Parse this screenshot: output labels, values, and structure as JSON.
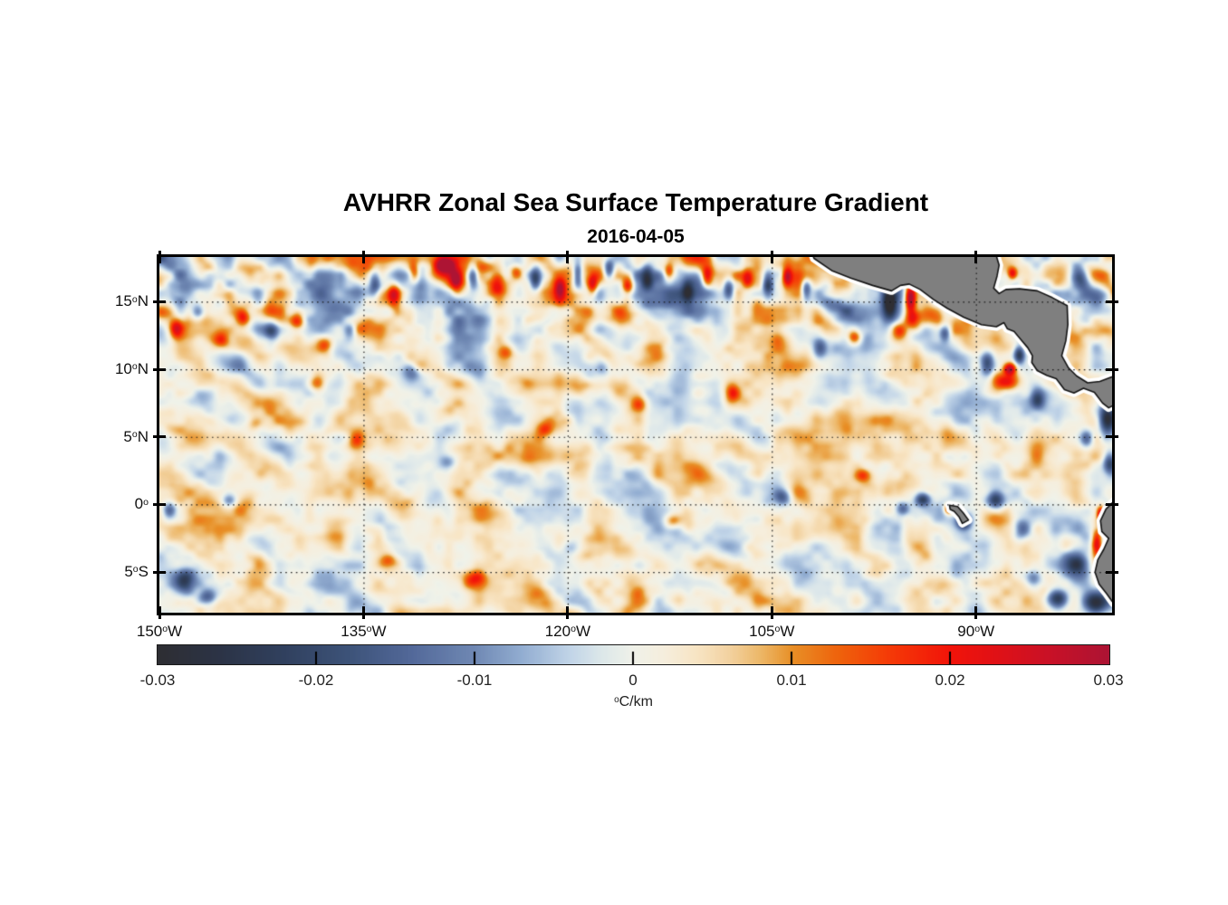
{
  "header": {
    "title": "AVHRR Zonal Sea Surface Temperature Gradient",
    "subtitle": "2016-04-05"
  },
  "chart_data": {
    "type": "heatmap",
    "title": "AVHRR Zonal Sea Surface Temperature Gradient",
    "subtitle": "2016-04-05",
    "units": "°C/km",
    "lon_range": [
      -150,
      -80
    ],
    "lat_range": [
      -8,
      18.3
    ],
    "grid": "dotted",
    "x_ticks": [
      {
        "lon": -150,
        "label": "150°W"
      },
      {
        "lon": -135,
        "label": "135°W"
      },
      {
        "lon": -120,
        "label": "120°W"
      },
      {
        "lon": -105,
        "label": "105°W"
      },
      {
        "lon": -90,
        "label": "90°W"
      }
    ],
    "y_ticks": [
      {
        "lat": 15,
        "label": "15°N"
      },
      {
        "lat": 10,
        "label": "10°N"
      },
      {
        "lat": 5,
        "label": "5°N"
      },
      {
        "lat": 0,
        "label": "0°"
      },
      {
        "lat": -5,
        "label": "5°S"
      }
    ],
    "colorbar": {
      "min": -0.03,
      "max": 0.03,
      "ticks": [
        {
          "v": -0.03,
          "label": "-0.03"
        },
        {
          "v": -0.02,
          "label": "-0.02"
        },
        {
          "v": -0.01,
          "label": "-0.01"
        },
        {
          "v": 0,
          "label": "0"
        },
        {
          "v": 0.01,
          "label": "0.01"
        },
        {
          "v": 0.02,
          "label": "0.02"
        },
        {
          "v": 0.03,
          "label": "0.03"
        }
      ],
      "label": "°C/km",
      "stops": [
        [
          -0.03,
          "#2e2e33"
        ],
        [
          -0.026,
          "#2c3447"
        ],
        [
          -0.022,
          "#31415f"
        ],
        [
          -0.018,
          "#3d5379"
        ],
        [
          -0.014,
          "#53699a"
        ],
        [
          -0.01,
          "#7089b4"
        ],
        [
          -0.007,
          "#93aed2"
        ],
        [
          -0.004,
          "#c2d5e8"
        ],
        [
          -0.002,
          "#dde8ea"
        ],
        [
          0.0,
          "#f0f2e9"
        ],
        [
          0.002,
          "#f6eedd"
        ],
        [
          0.004,
          "#f8e5c4"
        ],
        [
          0.006,
          "#f3d3a2"
        ],
        [
          0.008,
          "#edb869"
        ],
        [
          0.01,
          "#e89027"
        ],
        [
          0.013,
          "#ef620c"
        ],
        [
          0.016,
          "#f53c07"
        ],
        [
          0.02,
          "#f2140a"
        ],
        [
          0.023,
          "#e01117"
        ],
        [
          0.026,
          "#cb1126"
        ],
        [
          0.03,
          "#ad1434"
        ]
      ]
    },
    "land_color": "#7f7f7f",
    "coast_color": "#141414",
    "halo_color": "#ffffff",
    "land_polygons": {
      "central_america": [
        [
          -102.1,
          18.7
        ],
        [
          -101.9,
          18.2
        ],
        [
          -100.6,
          17.3
        ],
        [
          -99.2,
          16.75
        ],
        [
          -97.6,
          16.2
        ],
        [
          -96.2,
          15.8
        ],
        [
          -95.55,
          16.2
        ],
        [
          -94.9,
          16.3
        ],
        [
          -94.1,
          15.9
        ],
        [
          -93.1,
          15.15
        ],
        [
          -92.1,
          14.5
        ],
        [
          -90.9,
          13.85
        ],
        [
          -89.6,
          13.3
        ],
        [
          -88.5,
          13.15
        ],
        [
          -87.95,
          13.45
        ],
        [
          -87.7,
          13.0
        ],
        [
          -87.2,
          12.8
        ],
        [
          -86.7,
          12.2
        ],
        [
          -86.2,
          11.6
        ],
        [
          -85.85,
          11.0
        ],
        [
          -85.9,
          10.5
        ],
        [
          -85.5,
          9.9
        ],
        [
          -84.8,
          9.55
        ],
        [
          -84.1,
          9.3
        ],
        [
          -83.5,
          8.5
        ],
        [
          -82.8,
          8.25
        ],
        [
          -82.1,
          8.6
        ],
        [
          -81.3,
          8.3
        ],
        [
          -80.7,
          7.5
        ],
        [
          -80.25,
          7.15
        ],
        [
          -79.6,
          7.5
        ],
        [
          -79.6,
          9.6
        ],
        [
          -80.9,
          9.1
        ],
        [
          -81.8,
          9.0
        ],
        [
          -82.6,
          9.5
        ],
        [
          -83.2,
          10.1
        ],
        [
          -83.7,
          11.0
        ],
        [
          -83.4,
          12.1
        ],
        [
          -83.25,
          13.3
        ],
        [
          -83.3,
          14.7
        ],
        [
          -84.4,
          15.3
        ],
        [
          -85.5,
          15.8
        ],
        [
          -86.8,
          15.95
        ],
        [
          -87.8,
          15.9
        ],
        [
          -88.3,
          15.6
        ],
        [
          -88.7,
          16.0
        ],
        [
          -88.45,
          16.9
        ],
        [
          -88.3,
          17.7
        ],
        [
          -88.6,
          18.7
        ]
      ],
      "south_america": [
        [
          -79.6,
          0.5
        ],
        [
          -80.45,
          -0.35
        ],
        [
          -80.85,
          -1.2
        ],
        [
          -80.75,
          -2.0
        ],
        [
          -80.25,
          -2.5
        ],
        [
          -80.6,
          -3.3
        ],
        [
          -81.05,
          -4.1
        ],
        [
          -81.25,
          -5.0
        ],
        [
          -80.95,
          -5.9
        ],
        [
          -80.4,
          -6.6
        ],
        [
          -79.9,
          -7.3
        ],
        [
          -79.6,
          -7.5
        ]
      ],
      "galapagos": [
        [
          -91.95,
          -0.05
        ],
        [
          -91.35,
          -0.15
        ],
        [
          -90.95,
          -0.6
        ],
        [
          -90.55,
          -1.15
        ],
        [
          -91.0,
          -1.4
        ],
        [
          -91.25,
          -0.9
        ],
        [
          -91.6,
          -0.5
        ],
        [
          -91.9,
          -0.35
        ]
      ]
    },
    "features": [
      [
        -134.2,
        16.3,
        -0.02,
        0.45,
        1.1
      ],
      [
        -132.8,
        15.6,
        0.022,
        0.5,
        0.9
      ],
      [
        -131.3,
        17.2,
        0.018,
        0.4,
        0.8
      ],
      [
        -129.0,
        17.8,
        0.028,
        0.7,
        0.6
      ],
      [
        -128.2,
        16.6,
        0.024,
        0.45,
        0.9
      ],
      [
        -127.0,
        16.9,
        -0.022,
        0.4,
        1.0
      ],
      [
        -125.2,
        16.2,
        0.016,
        0.5,
        0.7
      ],
      [
        -123.8,
        17.3,
        0.018,
        0.5,
        0.6
      ],
      [
        -122.4,
        16.6,
        -0.018,
        0.4,
        0.9
      ],
      [
        -120.6,
        16.0,
        0.02,
        0.4,
        0.8
      ],
      [
        -119.3,
        17.0,
        -0.022,
        0.35,
        0.9
      ],
      [
        -118.2,
        16.2,
        0.022,
        0.4,
        0.8
      ],
      [
        -117.0,
        17.4,
        -0.02,
        0.4,
        0.7
      ],
      [
        -115.6,
        16.1,
        0.022,
        0.45,
        0.8
      ],
      [
        -114.2,
        16.8,
        -0.018,
        0.4,
        0.8
      ],
      [
        -112.6,
        17.2,
        0.02,
        0.4,
        0.7
      ],
      [
        -111.2,
        15.8,
        -0.016,
        0.4,
        0.8
      ],
      [
        -109.8,
        16.9,
        0.02,
        0.4,
        0.7
      ],
      [
        -108.2,
        16.0,
        -0.02,
        0.4,
        0.8
      ],
      [
        -106.8,
        16.8,
        0.018,
        0.4,
        0.7
      ],
      [
        -105.3,
        16.2,
        -0.022,
        0.4,
        0.9
      ],
      [
        -103.9,
        16.9,
        0.02,
        0.35,
        0.7
      ],
      [
        -102.5,
        15.9,
        -0.018,
        0.35,
        0.8
      ],
      [
        -148.8,
        13.0,
        0.016,
        0.5,
        0.7
      ],
      [
        -147.2,
        14.3,
        -0.016,
        0.5,
        0.8
      ],
      [
        -145.5,
        12.2,
        0.015,
        0.6,
        0.6
      ],
      [
        -143.9,
        13.8,
        0.016,
        0.5,
        0.6
      ],
      [
        -141.8,
        12.8,
        -0.014,
        0.5,
        0.7
      ],
      [
        -139.9,
        13.6,
        0.016,
        0.5,
        0.6
      ],
      [
        -137.8,
        11.8,
        0.014,
        0.6,
        0.6
      ],
      [
        -136.0,
        12.9,
        -0.013,
        0.5,
        0.7
      ],
      [
        -96.35,
        14.9,
        -0.028,
        0.5,
        1.2
      ],
      [
        -94.85,
        15.3,
        0.03,
        0.38,
        1.0
      ],
      [
        -94.6,
        13.7,
        0.024,
        0.6,
        0.8
      ],
      [
        -95.6,
        12.9,
        0.014,
        0.6,
        0.6
      ],
      [
        -89.2,
        10.4,
        -0.022,
        0.5,
        0.9
      ],
      [
        -87.55,
        10.05,
        0.029,
        0.45,
        0.45
      ],
      [
        -87.8,
        9.1,
        0.021,
        0.9,
        0.6
      ],
      [
        -86.85,
        11.1,
        -0.026,
        0.4,
        0.7
      ],
      [
        -85.5,
        7.8,
        -0.018,
        0.5,
        0.8
      ],
      [
        -87.35,
        17.1,
        0.02,
        0.35,
        0.45
      ],
      [
        -82.3,
        16.8,
        -0.013,
        0.6,
        0.8
      ],
      [
        -80.4,
        6.3,
        -0.027,
        0.6,
        1.3
      ],
      [
        -80.2,
        3.1,
        -0.022,
        0.5,
        0.9
      ],
      [
        -81.9,
        4.9,
        -0.016,
        0.5,
        0.7
      ],
      [
        -92.05,
        -0.3,
        0.027,
        0.33,
        0.4
      ],
      [
        -90.9,
        -1.2,
        -0.026,
        0.5,
        0.55
      ],
      [
        -93.9,
        0.4,
        -0.024,
        0.55,
        0.5
      ],
      [
        -95.4,
        -0.3,
        -0.016,
        0.5,
        0.5
      ],
      [
        -88.6,
        0.3,
        -0.022,
        0.6,
        0.7
      ],
      [
        -86.6,
        -1.8,
        -0.02,
        0.7,
        0.8
      ],
      [
        -80.85,
        -0.7,
        0.026,
        0.3,
        0.6
      ],
      [
        -81.15,
        -2.8,
        0.027,
        0.4,
        1.0
      ],
      [
        -80.3,
        -5.3,
        0.028,
        0.3,
        0.5
      ],
      [
        -82.6,
        -4.3,
        -0.027,
        0.9,
        1.0
      ],
      [
        -81.3,
        -7.3,
        -0.03,
        1.0,
        0.9
      ],
      [
        -84.0,
        -6.9,
        -0.026,
        0.8,
        0.7
      ],
      [
        -85.8,
        -5.5,
        -0.016,
        0.7,
        0.7
      ],
      [
        -148.2,
        -5.6,
        -0.022,
        0.8,
        0.9
      ],
      [
        -146.5,
        -6.8,
        -0.018,
        0.7,
        0.6
      ],
      [
        -149.3,
        -0.4,
        -0.016,
        0.5,
        0.6
      ],
      [
        -144.9,
        0.3,
        -0.014,
        0.6,
        0.5
      ],
      [
        -133.2,
        -4.2,
        0.013,
        0.7,
        0.6
      ],
      [
        -126.8,
        -5.5,
        0.012,
        0.8,
        0.6
      ],
      [
        -119.6,
        -3.1,
        -0.011,
        0.7,
        0.6
      ],
      [
        -112.4,
        -1.2,
        0.012,
        0.6,
        0.5
      ],
      [
        -104.2,
        0.6,
        -0.014,
        0.6,
        0.6
      ],
      [
        -98.4,
        2.2,
        0.013,
        0.6,
        0.5
      ],
      [
        -143.0,
        6.0,
        0.012,
        0.7,
        0.6
      ],
      [
        -135.6,
        4.8,
        0.013,
        0.6,
        0.6
      ],
      [
        -128.8,
        3.2,
        -0.012,
        0.6,
        0.6
      ],
      [
        -121.7,
        5.6,
        0.012,
        0.6,
        0.5
      ],
      [
        -114.8,
        7.4,
        0.013,
        0.6,
        0.6
      ],
      [
        -107.9,
        8.3,
        0.014,
        0.5,
        0.6
      ],
      [
        -101.5,
        11.6,
        -0.015,
        0.5,
        0.7
      ],
      [
        -99.0,
        12.4,
        0.016,
        0.5,
        0.6
      ],
      [
        -117.5,
        10.2,
        -0.012,
        0.6,
        0.6
      ],
      [
        -124.5,
        11.3,
        0.013,
        0.6,
        0.6
      ],
      [
        -131.5,
        9.8,
        -0.012,
        0.6,
        0.6
      ],
      [
        -138.5,
        9.0,
        0.012,
        0.6,
        0.6
      ],
      [
        -90.6,
        14.2,
        0.018,
        0.4,
        0.5
      ],
      [
        -92.3,
        12.7,
        -0.016,
        0.4,
        0.6
      ],
      [
        -144.0,
        -4.0,
        0.004,
        6.0,
        5.0
      ],
      [
        -125.0,
        -5.0,
        0.003,
        8.0,
        5.0
      ],
      [
        -100.0,
        5.0,
        0.002,
        8.0,
        6.0
      ],
      [
        -148.0,
        16.5,
        -0.004,
        3.0,
        3.0
      ]
    ],
    "noise": {
      "seed": 77,
      "bias": 0.001,
      "octaves": [
        [
          46,
          24,
          0.0068
        ],
        [
          22,
          20,
          0.0046
        ],
        [
          11,
          10,
          0.0022
        ]
      ],
      "north_boost_lat": 10.5,
      "north_boost_span": 5,
      "north_boost_amp": 0.85
    }
  }
}
